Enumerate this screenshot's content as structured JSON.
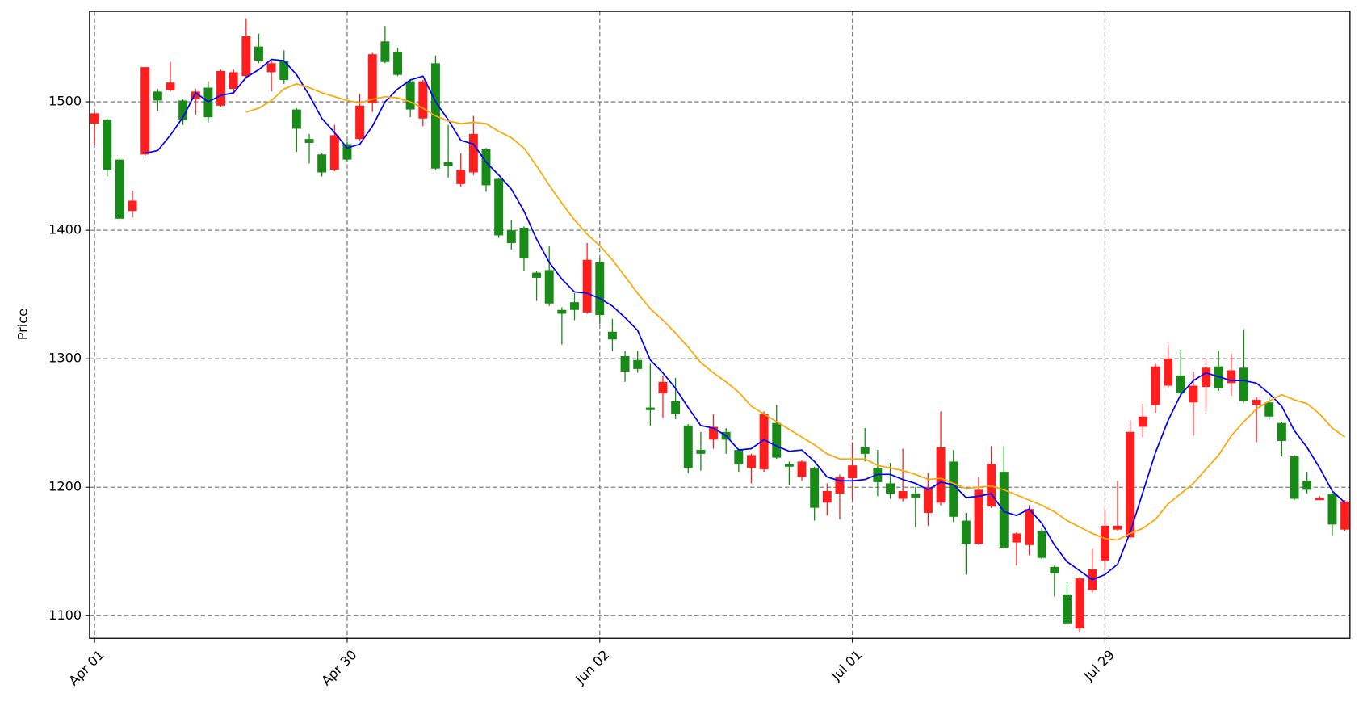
{
  "chart_data": {
    "type": "candlestick",
    "ylabel": "Price",
    "xlim": [
      -0.4,
      99.4
    ],
    "xticks": [
      {
        "value": 0,
        "label": "Apr 01"
      },
      {
        "value": 20,
        "label": "Apr 30"
      },
      {
        "value": 40,
        "label": "Jun 02"
      },
      {
        "value": 60,
        "label": "Jul 01"
      },
      {
        "value": 80,
        "label": "Jul 29"
      }
    ],
    "ylim": [
      1082.4,
      1570.4
    ],
    "yticks": [
      1100,
      1200,
      1300,
      1400,
      1500
    ],
    "grid": true,
    "up_color": "#ff1e1e",
    "down_color": "#178a17",
    "open": [
      1483,
      1486,
      1455,
      1415,
      1459,
      1508,
      1509,
      1501,
      1502,
      1511,
      1497,
      1510,
      1520,
      1543,
      1523,
      1532,
      1494,
      1471,
      1459,
      1447,
      1467,
      1471,
      1499,
      1547,
      1539,
      1516,
      1487,
      1530,
      1453,
      1436,
      1445,
      1463,
      1440,
      1400,
      1402,
      1367,
      1369,
      1338,
      1344,
      1336,
      1375,
      1321,
      1302,
      1299,
      1262,
      1273,
      1267,
      1248,
      1229,
      1237,
      1243,
      1229,
      1215,
      1214,
      1250,
      1218,
      1208,
      1215,
      1188,
      1195,
      1207,
      1231,
      1215,
      1203,
      1191,
      1195,
      1180,
      1188,
      1220,
      1174,
      1156,
      1185,
      1212,
      1157,
      1155,
      1166,
      1138,
      1116,
      1090,
      1120,
      1143,
      1167,
      1161,
      1247,
      1264,
      1279,
      1287,
      1266,
      1278,
      1294,
      1281,
      1293,
      1264,
      1266,
      1250,
      1224,
      1205,
      1190,
      1195,
      1167
    ],
    "high": [
      1492,
      1487,
      1456,
      1431,
      1527,
      1510,
      1531,
      1502,
      1510,
      1516,
      1525,
      1525,
      1565,
      1553,
      1532,
      1540,
      1495,
      1475,
      1460,
      1482,
      1469,
      1506,
      1538,
      1559,
      1542,
      1517,
      1517,
      1536,
      1482,
      1460,
      1489,
      1464,
      1441,
      1408,
      1403,
      1368,
      1388,
      1340,
      1351,
      1390,
      1378,
      1331,
      1306,
      1306,
      1296,
      1287,
      1285,
      1249,
      1243,
      1257,
      1246,
      1230,
      1226,
      1259,
      1264,
      1220,
      1221,
      1216,
      1203,
      1210,
      1235,
      1246,
      1229,
      1219,
      1230,
      1200,
      1211,
      1259,
      1229,
      1180,
      1208,
      1232,
      1232,
      1165,
      1186,
      1168,
      1139,
      1126,
      1130,
      1152,
      1183,
      1205,
      1252,
      1265,
      1296,
      1311,
      1307,
      1290,
      1300,
      1306,
      1304,
      1323,
      1270,
      1270,
      1251,
      1225,
      1212,
      1193,
      1196,
      1190
    ],
    "low": [
      1466,
      1442,
      1408,
      1410,
      1458,
      1493,
      1508,
      1482,
      1490,
      1484,
      1496,
      1506,
      1518,
      1530,
      1508,
      1514,
      1461,
      1452,
      1442,
      1446,
      1454,
      1470,
      1492,
      1530,
      1520,
      1488,
      1481,
      1447,
      1441,
      1434,
      1443,
      1430,
      1394,
      1385,
      1368,
      1345,
      1341,
      1311,
      1330,
      1335,
      1327,
      1306,
      1282,
      1289,
      1248,
      1254,
      1253,
      1211,
      1213,
      1230,
      1226,
      1212,
      1203,
      1212,
      1222,
      1202,
      1205,
      1174,
      1178,
      1175,
      1190,
      1220,
      1193,
      1191,
      1189,
      1169,
      1170,
      1186,
      1173,
      1132,
      1155,
      1184,
      1152,
      1139,
      1147,
      1144,
      1115,
      1093,
      1087,
      1118,
      1135,
      1166,
      1160,
      1239,
      1258,
      1277,
      1270,
      1240,
      1259,
      1275,
      1271,
      1266,
      1235,
      1253,
      1224,
      1190,
      1195,
      1190,
      1162,
      1166
    ],
    "close": [
      1491,
      1447,
      1409,
      1423,
      1527,
      1501,
      1515,
      1486,
      1508,
      1488,
      1524,
      1523,
      1551,
      1532,
      1530,
      1517,
      1479,
      1468,
      1445,
      1474,
      1455,
      1497,
      1537,
      1531,
      1521,
      1494,
      1516,
      1448,
      1450,
      1447,
      1475,
      1435,
      1396,
      1390,
      1378,
      1363,
      1343,
      1335,
      1338,
      1377,
      1334,
      1315,
      1290,
      1292,
      1260,
      1282,
      1257,
      1215,
      1226,
      1247,
      1237,
      1218,
      1225,
      1257,
      1223,
      1216,
      1220,
      1184,
      1197,
      1208,
      1217,
      1226,
      1204,
      1195,
      1197,
      1192,
      1200,
      1231,
      1177,
      1156,
      1198,
      1218,
      1153,
      1164,
      1183,
      1145,
      1133,
      1094,
      1129,
      1136,
      1170,
      1170,
      1243,
      1255,
      1294,
      1300,
      1273,
      1279,
      1293,
      1277,
      1291,
      1267,
      1268,
      1255,
      1236,
      1191,
      1198,
      1192,
      1171,
      1189
    ],
    "lines": [
      {
        "color": "blue",
        "values": [
          null,
          null,
          null,
          null,
          1460,
          1462,
          1474,
          1488,
          1507,
          1500,
          1505,
          1507,
          1519,
          1525,
          1533,
          1532,
          1521,
          1505,
          1487,
          1476,
          1464,
          1467,
          1481,
          1500,
          1510,
          1517,
          1520,
          1500,
          1486,
          1470,
          1467,
          1453,
          1443,
          1432,
          1415,
          1393,
          1375,
          1362,
          1352,
          1351,
          1347,
          1341,
          1332,
          1322,
          1299,
          1289,
          1277,
          1262,
          1248,
          1246,
          1240,
          1229,
          1230,
          1237,
          1232,
          1228,
          1229,
          1220,
          1208,
          1205,
          1205,
          1206,
          1210,
          1210,
          1206,
          1203,
          1198,
          1204,
          1202,
          1192,
          1193,
          1195,
          1181,
          1178,
          1183,
          1172,
          1155,
          1142,
          1135,
          1128,
          1132,
          1140,
          1165,
          1196,
          1227,
          1252,
          1272,
          1283,
          1289,
          1286,
          1283,
          1283,
          1281,
          1273,
          1263,
          1244,
          1231,
          1215,
          1197,
          1188
        ]
      },
      {
        "color": "orange",
        "values": [
          null,
          null,
          null,
          null,
          null,
          null,
          null,
          null,
          null,
          null,
          null,
          null,
          1492,
          1495,
          1501,
          1510,
          1514,
          1511,
          1507,
          1504,
          1501,
          1499,
          1502,
          1504,
          1503,
          1500,
          1495,
          1489,
          1485,
          1483,
          1484,
          1483,
          1477,
          1472,
          1464,
          1450,
          1435,
          1421,
          1408,
          1397,
          1388,
          1377,
          1364,
          1351,
          1339,
          1330,
          1320,
          1309,
          1297,
          1289,
          1282,
          1274,
          1263,
          1257,
          1251,
          1245,
          1239,
          1233,
          1226,
          1222,
          1222,
          1222,
          1217,
          1215,
          1213,
          1210,
          1206,
          1207,
          1203,
          1199,
          1200,
          1201,
          1198,
          1194,
          1190,
          1186,
          1181,
          1174,
          1169,
          1164,
          1160,
          1159,
          1164,
          1168,
          1175,
          1187,
          1195,
          1203,
          1214,
          1225,
          1240,
          1251,
          1261,
          1267,
          1272,
          1268,
          1265,
          1257,
          1246,
          1239
        ]
      }
    ]
  }
}
